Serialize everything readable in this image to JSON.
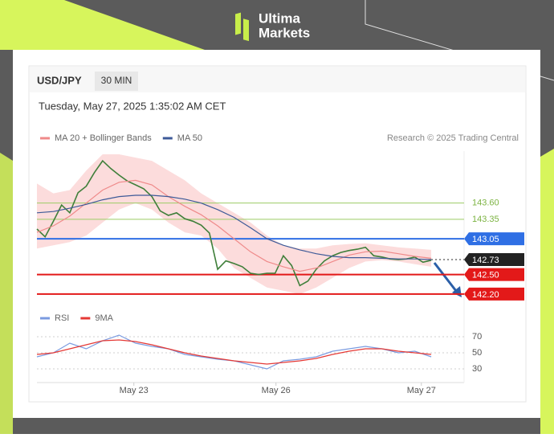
{
  "header": {
    "brand_top": "Ultima",
    "brand_bottom": "Markets"
  },
  "chart_data": {
    "type": "line",
    "symbol": "USD/JPY",
    "timeframe": "30 MIN",
    "timestamp": "Tuesday, May 27, 2025 1:35:02 AM CET",
    "credit": "Research © 2025 Trading Central",
    "xlim": [
      0,
      52
    ],
    "xticks": [
      {
        "value": 11.8,
        "label": "May 23"
      },
      {
        "value": 29.1,
        "label": "May 26"
      },
      {
        "value": 46.8,
        "label": "May 27"
      }
    ],
    "ylim": [
      142.05,
      144.4
    ],
    "series": [
      {
        "color": "#3f7f3a",
        "x": [
          0,
          1,
          2,
          3,
          4,
          5,
          6,
          7,
          8,
          9,
          10,
          11,
          12,
          13,
          14,
          15,
          16,
          17,
          18,
          19,
          20,
          21,
          22,
          23,
          24,
          25,
          26,
          27,
          28,
          29,
          30,
          31,
          32,
          33,
          34,
          35,
          36,
          37,
          38,
          39,
          40,
          41,
          42,
          43,
          44,
          45,
          46,
          47,
          48
        ],
        "values": [
          143.2,
          143.08,
          143.32,
          143.57,
          143.45,
          143.76,
          143.86,
          144.07,
          144.25,
          144.13,
          144.03,
          143.94,
          143.88,
          143.82,
          143.7,
          143.48,
          143.41,
          143.45,
          143.36,
          143.32,
          143.26,
          143.14,
          142.58,
          142.71,
          142.67,
          142.62,
          142.52,
          142.5,
          142.52,
          142.52,
          142.79,
          142.64,
          142.33,
          142.4,
          142.58,
          142.71,
          142.79,
          142.84,
          142.87,
          142.89,
          142.92,
          142.79,
          142.77,
          142.74,
          142.73,
          142.74,
          142.77,
          142.69,
          142.72
        ]
      },
      {
        "name": "MA 20 + Bollinger Bands",
        "color": "#ef8a8a",
        "band_color": "#fbd3d3",
        "x": [
          0,
          2,
          4,
          6,
          8,
          10,
          12,
          14,
          16,
          18,
          20,
          22,
          24,
          26,
          28,
          30,
          32,
          34,
          36,
          38,
          40,
          42,
          44,
          46,
          48
        ],
        "values": [
          143.15,
          143.25,
          143.4,
          143.6,
          143.8,
          143.92,
          143.95,
          143.88,
          143.7,
          143.55,
          143.42,
          143.25,
          143.05,
          142.85,
          142.7,
          142.62,
          142.55,
          142.6,
          142.7,
          142.8,
          142.85,
          142.86,
          142.82,
          142.78,
          142.75
        ],
        "band_upper": [
          143.9,
          143.75,
          143.8,
          144.1,
          144.35,
          144.35,
          144.3,
          144.25,
          144.1,
          143.95,
          143.75,
          143.6,
          143.45,
          143.3,
          143.1,
          142.95,
          142.9,
          142.9,
          142.95,
          142.97,
          142.98,
          142.95,
          142.92,
          142.9,
          142.88
        ],
        "band_lower": [
          142.9,
          142.95,
          143.0,
          143.1,
          143.3,
          143.5,
          143.6,
          143.5,
          143.3,
          143.15,
          143.1,
          142.9,
          142.6,
          142.45,
          142.3,
          142.25,
          142.2,
          142.3,
          142.45,
          142.6,
          142.7,
          142.72,
          142.7,
          142.66,
          142.62
        ]
      },
      {
        "name": "MA 50",
        "color": "#3d5a98",
        "x": [
          0,
          2,
          4,
          6,
          8,
          10,
          12,
          14,
          16,
          18,
          20,
          22,
          24,
          26,
          28,
          30,
          32,
          34,
          36,
          38,
          40,
          42,
          44,
          46,
          48
        ],
        "values": [
          143.45,
          143.47,
          143.52,
          143.58,
          143.65,
          143.7,
          143.72,
          143.72,
          143.7,
          143.66,
          143.6,
          143.5,
          143.38,
          143.22,
          143.05,
          142.95,
          142.88,
          142.82,
          142.78,
          142.76,
          142.76,
          142.75,
          142.74,
          142.74,
          142.73
        ]
      }
    ],
    "levels": [
      {
        "value": 143.6,
        "label": "143.60",
        "color": "#9ccc65",
        "tag": false,
        "style": "solid"
      },
      {
        "value": 143.35,
        "label": "143.35",
        "color": "#9ccc65",
        "tag": false,
        "style": "solid"
      },
      {
        "value": 143.05,
        "label": "143.05",
        "color": "#2f6fe4",
        "tag": true,
        "style": "solid"
      },
      {
        "value": 142.73,
        "label": "142.73",
        "color": "#222222",
        "tag": true,
        "style": "dotted"
      },
      {
        "value": 142.5,
        "label": "142.50",
        "color": "#e31919",
        "tag": true,
        "style": "solid"
      },
      {
        "value": 142.2,
        "label": "142.20",
        "color": "#e31919",
        "tag": true,
        "style": "solid"
      }
    ],
    "rsi": {
      "ylim": [
        20,
        80
      ],
      "yticks": [
        70,
        50,
        30
      ],
      "x": [
        0,
        2,
        4,
        6,
        8,
        10,
        12,
        14,
        16,
        18,
        20,
        22,
        24,
        26,
        28,
        30,
        32,
        34,
        36,
        38,
        40,
        42,
        44,
        46,
        48
      ],
      "series": [
        {
          "name": "RSI",
          "color": "#7b9be0",
          "values": [
            45,
            50,
            62,
            55,
            65,
            72,
            62,
            58,
            55,
            48,
            45,
            42,
            40,
            35,
            30,
            40,
            42,
            45,
            52,
            55,
            58,
            55,
            50,
            52,
            45
          ]
        },
        {
          "name": "9MA",
          "color": "#e53935",
          "values": [
            48,
            50,
            55,
            60,
            65,
            66,
            64,
            60,
            55,
            50,
            46,
            43,
            40,
            38,
            36,
            38,
            40,
            43,
            48,
            52,
            55,
            55,
            52,
            50,
            48
          ]
        }
      ]
    }
  }
}
